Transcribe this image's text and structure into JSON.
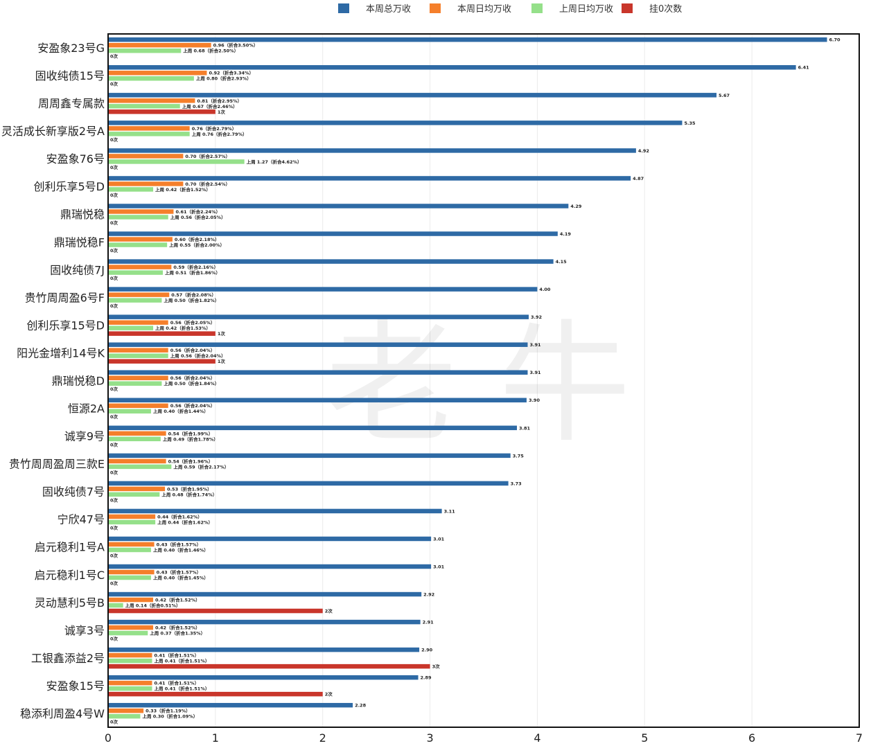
{
  "watermark": "老  牛",
  "chart_data": {
    "type": "bar",
    "orientation": "horizontal",
    "title": "",
    "xlabel": "",
    "ylabel": "",
    "xlim": [
      0,
      7
    ],
    "xticks": [
      0,
      1,
      2,
      3,
      4,
      5,
      6,
      7
    ],
    "grid": true,
    "legend_position": "top",
    "colors": {
      "total": "#2e6aa5",
      "avg": "#f57f2b",
      "last": "#95e08a",
      "zero": "#c9362b"
    },
    "legend": [
      {
        "key": "total",
        "label": "本周总万收"
      },
      {
        "key": "avg",
        "label": "本周日均万收"
      },
      {
        "key": "last",
        "label": "上周日均万收"
      },
      {
        "key": "zero",
        "label": "挂0次数"
      }
    ],
    "categories": [
      {
        "name": "安盈象23号G",
        "total": 6.7,
        "total_label": "6.70",
        "avg": 0.96,
        "avg_label": "0.96（折合3.50%）",
        "last": 0.68,
        "last_label": "上周 0.68（折合2.50%）",
        "zero": 0,
        "zero_label": "0次"
      },
      {
        "name": "固收纯债15号",
        "total": 6.41,
        "total_label": "6.41",
        "avg": 0.92,
        "avg_label": "0.92（折合3.34%）",
        "last": 0.8,
        "last_label": "上周 0.80（折合2.93%）",
        "zero": 0,
        "zero_label": "0次"
      },
      {
        "name": "周周鑫专属款",
        "total": 5.67,
        "total_label": "5.67",
        "avg": 0.81,
        "avg_label": "0.81（折合2.95%）",
        "last": 0.67,
        "last_label": "上周 0.67（折合2.46%）",
        "zero": 1,
        "zero_label": "1次"
      },
      {
        "name": "灵活成长新享版2号A",
        "total": 5.35,
        "total_label": "5.35",
        "avg": 0.76,
        "avg_label": "0.76（折合2.79%）",
        "last": 0.76,
        "last_label": "上周 0.76（折合2.79%）",
        "zero": 0,
        "zero_label": "0次"
      },
      {
        "name": "安盈象76号",
        "total": 4.92,
        "total_label": "4.92",
        "avg": 0.7,
        "avg_label": "0.70（折合2.57%）",
        "last": 1.27,
        "last_label": "上周 1.27（折合4.62%）",
        "zero": 0,
        "zero_label": "0次"
      },
      {
        "name": "创利乐享5号D",
        "total": 4.87,
        "total_label": "4.87",
        "avg": 0.7,
        "avg_label": "0.70（折合2.54%）",
        "last": 0.42,
        "last_label": "上周 0.42（折合1.52%）",
        "zero": 0,
        "zero_label": "0次"
      },
      {
        "name": "鼎瑞悦稳",
        "total": 4.29,
        "total_label": "4.29",
        "avg": 0.61,
        "avg_label": "0.61（折合2.24%）",
        "last": 0.56,
        "last_label": "上周 0.56（折合2.05%）",
        "zero": 0,
        "zero_label": "0次"
      },
      {
        "name": "鼎瑞悦稳F",
        "total": 4.19,
        "total_label": "4.19",
        "avg": 0.6,
        "avg_label": "0.60（折合2.18%）",
        "last": 0.55,
        "last_label": "上周 0.55（折合2.00%）",
        "zero": 0,
        "zero_label": "0次"
      },
      {
        "name": "固收纯债7J",
        "total": 4.15,
        "total_label": "4.15",
        "avg": 0.59,
        "avg_label": "0.59（折合2.16%）",
        "last": 0.51,
        "last_label": "上周 0.51（折合1.86%）",
        "zero": 0,
        "zero_label": "0次"
      },
      {
        "name": "贵竹周周盈6号F",
        "total": 4.0,
        "total_label": "4.00",
        "avg": 0.57,
        "avg_label": "0.57（折合2.08%）",
        "last": 0.5,
        "last_label": "上周 0.50（折合1.82%）",
        "zero": 0,
        "zero_label": "0次"
      },
      {
        "name": "创利乐享15号D",
        "total": 3.92,
        "total_label": "3.92",
        "avg": 0.56,
        "avg_label": "0.56（折合2.05%）",
        "last": 0.42,
        "last_label": "上周 0.42（折合1.53%）",
        "zero": 1,
        "zero_label": "1次"
      },
      {
        "name": "阳光金增利14号K",
        "total": 3.91,
        "total_label": "3.91",
        "avg": 0.56,
        "avg_label": "0.56（折合2.04%）",
        "last": 0.56,
        "last_label": "上周 0.56（折合2.04%）",
        "zero": 1,
        "zero_label": "1次"
      },
      {
        "name": "鼎瑞悦稳D",
        "total": 3.91,
        "total_label": "3.91",
        "avg": 0.56,
        "avg_label": "0.56（折合2.04%）",
        "last": 0.5,
        "last_label": "上周 0.50（折合1.84%）",
        "zero": 0,
        "zero_label": "0次"
      },
      {
        "name": "恒源2A",
        "total": 3.9,
        "total_label": "3.90",
        "avg": 0.56,
        "avg_label": "0.56（折合2.04%）",
        "last": 0.4,
        "last_label": "上周 0.40（折合1.44%）",
        "zero": 0,
        "zero_label": "0次"
      },
      {
        "name": "诚享9号",
        "total": 3.81,
        "total_label": "3.81",
        "avg": 0.54,
        "avg_label": "0.54（折合1.99%）",
        "last": 0.49,
        "last_label": "上周 0.49（折合1.78%）",
        "zero": 0,
        "zero_label": "0次"
      },
      {
        "name": "贵竹周周盈周三款E",
        "total": 3.75,
        "total_label": "3.75",
        "avg": 0.54,
        "avg_label": "0.54（折合1.96%）",
        "last": 0.59,
        "last_label": "上周 0.59（折合2.17%）",
        "zero": 0,
        "zero_label": "0次"
      },
      {
        "name": "固收纯债7号",
        "total": 3.73,
        "total_label": "3.73",
        "avg": 0.53,
        "avg_label": "0.53（折合1.95%）",
        "last": 0.48,
        "last_label": "上周 0.48（折合1.74%）",
        "zero": 0,
        "zero_label": "0次"
      },
      {
        "name": "宁欣47号",
        "total": 3.11,
        "total_label": "3.11",
        "avg": 0.44,
        "avg_label": "0.44（折合1.62%）",
        "last": 0.44,
        "last_label": "上周 0.44（折合1.62%）",
        "zero": 0,
        "zero_label": "0次"
      },
      {
        "name": "启元稳利1号A",
        "total": 3.01,
        "total_label": "3.01",
        "avg": 0.43,
        "avg_label": "0.43（折合1.57%）",
        "last": 0.4,
        "last_label": "上周 0.40（折合1.46%）",
        "zero": 0,
        "zero_label": "0次"
      },
      {
        "name": "启元稳利1号C",
        "total": 3.01,
        "total_label": "3.01",
        "avg": 0.43,
        "avg_label": "0.43（折合1.57%）",
        "last": 0.4,
        "last_label": "上周 0.40（折合1.45%）",
        "zero": 0,
        "zero_label": "0次"
      },
      {
        "name": "灵动慧利5号B",
        "total": 2.92,
        "total_label": "2.92",
        "avg": 0.42,
        "avg_label": "0.42（折合1.52%）",
        "last": 0.14,
        "last_label": "上周 0.14（折合0.51%）",
        "zero": 2,
        "zero_label": "2次"
      },
      {
        "name": "诚享3号",
        "total": 2.91,
        "total_label": "2.91",
        "avg": 0.42,
        "avg_label": "0.42（折合1.52%）",
        "last": 0.37,
        "last_label": "上周 0.37（折合1.35%）",
        "zero": 0,
        "zero_label": "0次"
      },
      {
        "name": "工银鑫添益2号",
        "total": 2.9,
        "total_label": "2.90",
        "avg": 0.41,
        "avg_label": "0.41（折合1.51%）",
        "last": 0.41,
        "last_label": "上周 0.41（折合1.51%）",
        "zero": 3,
        "zero_label": "3次"
      },
      {
        "name": "安盈象15号",
        "total": 2.89,
        "total_label": "2.89",
        "avg": 0.41,
        "avg_label": "0.41（折合1.51%）",
        "last": 0.41,
        "last_label": "上周 0.41（折合1.51%）",
        "zero": 2,
        "zero_label": "2次"
      },
      {
        "name": "稳添利周盈4号W",
        "total": 2.28,
        "total_label": "2.28",
        "avg": 0.33,
        "avg_label": "0.33（折合1.19%）",
        "last": 0.3,
        "last_label": "上周 0.30（折合1.09%）",
        "zero": 0,
        "zero_label": "0次"
      }
    ]
  }
}
